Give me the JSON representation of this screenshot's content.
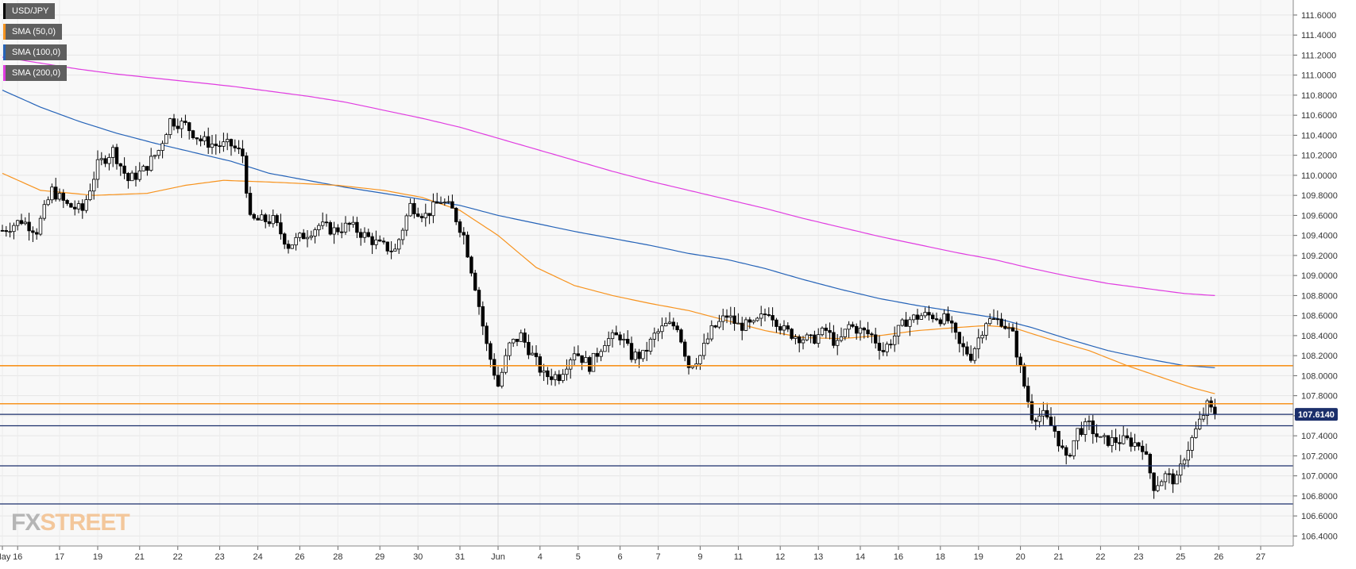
{
  "legend": [
    {
      "label": "USD/JPY",
      "color": "#000000"
    },
    {
      "label": "SMA (50,0)",
      "color": "#f7931e"
    },
    {
      "label": "SMA (100,0)",
      "color": "#2563b8"
    },
    {
      "label": "SMA (200,0)",
      "color": "#e03ce0"
    }
  ],
  "logo": {
    "part1": "FX",
    "part2": "STREET"
  },
  "chart_data": {
    "type": "candlestick",
    "title": "",
    "xlabel": "",
    "ylabel": "",
    "ylim": [
      106.3,
      111.75
    ],
    "grid": true,
    "legend_position": "top-left",
    "y_ticks": [
      "111.6000",
      "111.4000",
      "111.2000",
      "111.0000",
      "110.8000",
      "110.6000",
      "110.4000",
      "110.2000",
      "110.0000",
      "109.8000",
      "109.6000",
      "109.4000",
      "109.2000",
      "109.0000",
      "108.8000",
      "108.6000",
      "108.4000",
      "108.2000",
      "108.0000",
      "107.8000",
      "107.6000",
      "107.4000",
      "107.2000",
      "107.0000",
      "106.8000",
      "106.6000",
      "106.4000"
    ],
    "x_axis_labels": [
      {
        "label": "May",
        "bar": 0
      },
      {
        "label": "16",
        "bar": 4
      },
      {
        "label": "17",
        "bar": 15
      },
      {
        "label": "19",
        "bar": 25
      },
      {
        "label": "21",
        "bar": 36
      },
      {
        "label": "22",
        "bar": 46
      },
      {
        "label": "23",
        "bar": 57
      },
      {
        "label": "24",
        "bar": 67
      },
      {
        "label": "26",
        "bar": 78
      },
      {
        "label": "28",
        "bar": 88
      },
      {
        "label": "29",
        "bar": 99
      },
      {
        "label": "30",
        "bar": 109
      },
      {
        "label": "31",
        "bar": 120
      },
      {
        "label": "Jun",
        "bar": 130
      },
      {
        "label": "4",
        "bar": 141
      },
      {
        "label": "5",
        "bar": 151
      },
      {
        "label": "6",
        "bar": 162
      },
      {
        "label": "7",
        "bar": 172
      },
      {
        "label": "9",
        "bar": 183
      },
      {
        "label": "11",
        "bar": 193
      },
      {
        "label": "12",
        "bar": 204
      },
      {
        "label": "13",
        "bar": 214
      },
      {
        "label": "14",
        "bar": 225
      },
      {
        "label": "16",
        "bar": 235
      },
      {
        "label": "18",
        "bar": 246
      },
      {
        "label": "19",
        "bar": 256
      },
      {
        "label": "20",
        "bar": 267
      },
      {
        "label": "21",
        "bar": 277
      },
      {
        "label": "22",
        "bar": 288
      },
      {
        "label": "23",
        "bar": 298
      },
      {
        "label": "25",
        "bar": 309
      },
      {
        "label": "26",
        "bar": 319
      },
      {
        "label": "27",
        "bar": 330
      }
    ],
    "price_path_anchors": [
      [
        0,
        109.45
      ],
      [
        5,
        109.55
      ],
      [
        9,
        109.45
      ],
      [
        13,
        109.85
      ],
      [
        17,
        109.7
      ],
      [
        21,
        109.65
      ],
      [
        25,
        110.1
      ],
      [
        29,
        110.25
      ],
      [
        33,
        109.95
      ],
      [
        37,
        110.05
      ],
      [
        41,
        110.25
      ],
      [
        44,
        110.55
      ],
      [
        48,
        110.5
      ],
      [
        52,
        110.35
      ],
      [
        56,
        110.3
      ],
      [
        60,
        110.3
      ],
      [
        63,
        110.2
      ],
      [
        65,
        109.55
      ],
      [
        71,
        109.55
      ],
      [
        75,
        109.3
      ],
      [
        79,
        109.4
      ],
      [
        83,
        109.5
      ],
      [
        87,
        109.45
      ],
      [
        91,
        109.5
      ],
      [
        95,
        109.4
      ],
      [
        99,
        109.3
      ],
      [
        103,
        109.25
      ],
      [
        107,
        109.7
      ],
      [
        111,
        109.6
      ],
      [
        115,
        109.75
      ],
      [
        118,
        109.65
      ],
      [
        121,
        109.4
      ],
      [
        124,
        108.9
      ],
      [
        127,
        108.3
      ],
      [
        130,
        107.9
      ],
      [
        133,
        108.3
      ],
      [
        136,
        108.4
      ],
      [
        139,
        108.2
      ],
      [
        142,
        108.0
      ],
      [
        146,
        108.0
      ],
      [
        150,
        108.25
      ],
      [
        154,
        108.1
      ],
      [
        158,
        108.35
      ],
      [
        162,
        108.4
      ],
      [
        165,
        108.2
      ],
      [
        168,
        108.2
      ],
      [
        171,
        108.4
      ],
      [
        174,
        108.5
      ],
      [
        177,
        108.5
      ],
      [
        180,
        108.1
      ],
      [
        183,
        108.2
      ],
      [
        186,
        108.45
      ],
      [
        190,
        108.6
      ],
      [
        193,
        108.5
      ],
      [
        197,
        108.5
      ],
      [
        201,
        108.65
      ],
      [
        205,
        108.45
      ],
      [
        208,
        108.4
      ],
      [
        212,
        108.35
      ],
      [
        216,
        108.45
      ],
      [
        219,
        108.3
      ],
      [
        222,
        108.5
      ],
      [
        225,
        108.45
      ],
      [
        228,
        108.4
      ],
      [
        231,
        108.25
      ],
      [
        234,
        108.4
      ],
      [
        237,
        108.55
      ],
      [
        241,
        108.6
      ],
      [
        244,
        108.6
      ],
      [
        248,
        108.55
      ],
      [
        251,
        108.3
      ],
      [
        254,
        108.2
      ],
      [
        258,
        108.55
      ],
      [
        262,
        108.55
      ],
      [
        265,
        108.4
      ],
      [
        268,
        107.9
      ],
      [
        270,
        107.6
      ],
      [
        273,
        107.6
      ],
      [
        276,
        107.45
      ],
      [
        279,
        107.15
      ],
      [
        282,
        107.45
      ],
      [
        285,
        107.5
      ],
      [
        288,
        107.35
      ],
      [
        291,
        107.35
      ],
      [
        295,
        107.35
      ],
      [
        299,
        107.3
      ],
      [
        302,
        106.9
      ],
      [
        305,
        107.0
      ],
      [
        308,
        106.95
      ],
      [
        310,
        107.2
      ],
      [
        313,
        107.45
      ],
      [
        316,
        107.7
      ],
      [
        318,
        107.61
      ]
    ],
    "sma50": [
      [
        0,
        110.02
      ],
      [
        10,
        109.85
      ],
      [
        24,
        109.8
      ],
      [
        38,
        109.82
      ],
      [
        48,
        109.9
      ],
      [
        58,
        109.95
      ],
      [
        72,
        109.93
      ],
      [
        88,
        109.9
      ],
      [
        100,
        109.85
      ],
      [
        110,
        109.78
      ],
      [
        120,
        109.65
      ],
      [
        130,
        109.4
      ],
      [
        140,
        109.08
      ],
      [
        150,
        108.9
      ],
      [
        160,
        108.8
      ],
      [
        170,
        108.72
      ],
      [
        180,
        108.65
      ],
      [
        190,
        108.55
      ],
      [
        200,
        108.45
      ],
      [
        210,
        108.38
      ],
      [
        220,
        108.37
      ],
      [
        230,
        108.4
      ],
      [
        240,
        108.45
      ],
      [
        250,
        108.48
      ],
      [
        258,
        108.5
      ],
      [
        265,
        108.48
      ],
      [
        275,
        108.36
      ],
      [
        285,
        108.25
      ],
      [
        295,
        108.1
      ],
      [
        305,
        107.97
      ],
      [
        312,
        107.88
      ],
      [
        318,
        107.82
      ]
    ],
    "sma100": [
      [
        0,
        110.85
      ],
      [
        10,
        110.68
      ],
      [
        20,
        110.54
      ],
      [
        30,
        110.42
      ],
      [
        40,
        110.32
      ],
      [
        50,
        110.23
      ],
      [
        60,
        110.14
      ],
      [
        70,
        110.02
      ],
      [
        80,
        109.95
      ],
      [
        90,
        109.88
      ],
      [
        100,
        109.82
      ],
      [
        110,
        109.76
      ],
      [
        120,
        109.7
      ],
      [
        130,
        109.6
      ],
      [
        140,
        109.52
      ],
      [
        150,
        109.44
      ],
      [
        160,
        109.37
      ],
      [
        170,
        109.3
      ],
      [
        180,
        109.22
      ],
      [
        190,
        109.16
      ],
      [
        200,
        109.07
      ],
      [
        210,
        108.96
      ],
      [
        220,
        108.86
      ],
      [
        230,
        108.77
      ],
      [
        240,
        108.7
      ],
      [
        250,
        108.64
      ],
      [
        260,
        108.58
      ],
      [
        270,
        108.48
      ],
      [
        280,
        108.36
      ],
      [
        290,
        108.25
      ],
      [
        300,
        108.17
      ],
      [
        310,
        108.1
      ],
      [
        318,
        108.08
      ]
    ],
    "sma200": [
      [
        0,
        111.18
      ],
      [
        10,
        111.12
      ],
      [
        20,
        111.06
      ],
      [
        30,
        111.01
      ],
      [
        40,
        110.97
      ],
      [
        50,
        110.93
      ],
      [
        60,
        110.89
      ],
      [
        70,
        110.84
      ],
      [
        80,
        110.79
      ],
      [
        90,
        110.73
      ],
      [
        100,
        110.65
      ],
      [
        110,
        110.57
      ],
      [
        120,
        110.48
      ],
      [
        130,
        110.37
      ],
      [
        140,
        110.26
      ],
      [
        150,
        110.15
      ],
      [
        160,
        110.04
      ],
      [
        170,
        109.94
      ],
      [
        180,
        109.85
      ],
      [
        190,
        109.76
      ],
      [
        200,
        109.67
      ],
      [
        210,
        109.57
      ],
      [
        220,
        109.48
      ],
      [
        230,
        109.39
      ],
      [
        240,
        109.31
      ],
      [
        250,
        109.23
      ],
      [
        260,
        109.16
      ],
      [
        270,
        109.07
      ],
      [
        280,
        108.99
      ],
      [
        290,
        108.92
      ],
      [
        300,
        108.87
      ],
      [
        310,
        108.82
      ],
      [
        318,
        108.8
      ]
    ],
    "horizontal_levels": [
      {
        "value": 108.1,
        "color": "#f7931e"
      },
      {
        "value": 107.72,
        "color": "#f7931e"
      },
      {
        "value": 107.614,
        "color": "#1b2f6b"
      },
      {
        "value": 107.5,
        "color": "#1b2f6b"
      },
      {
        "value": 107.1,
        "color": "#1b2f6b"
      },
      {
        "value": 106.72,
        "color": "#1b2f6b"
      }
    ],
    "current_price_label": "107.6140",
    "current_price": 107.614,
    "total_bars": 331,
    "vertical_marker_bar": 130
  }
}
